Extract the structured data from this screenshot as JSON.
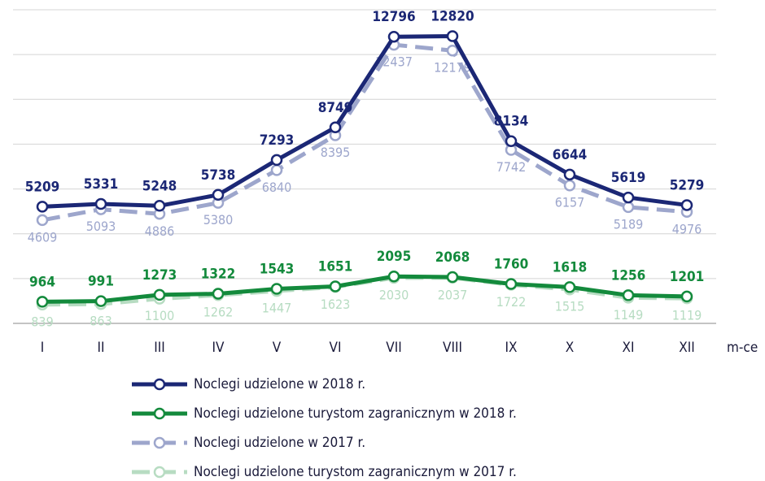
{
  "chart_data": {
    "type": "line",
    "categories": [
      "I",
      "II",
      "III",
      "IV",
      "V",
      "VI",
      "VII",
      "VIII",
      "IX",
      "X",
      "XI",
      "XII"
    ],
    "x_label": "m-ce",
    "ylim": [
      0,
      14000
    ],
    "yticks": [
      0,
      2000,
      4000,
      6000,
      8000,
      10000,
      12000,
      14000
    ],
    "grid": true,
    "legend": "bottom",
    "series": [
      {
        "name": "Noclegi udzielone w 2018 r.",
        "color": "#1b2775",
        "dashed": false,
        "label_position": "above",
        "values": [
          5209,
          5331,
          5248,
          5738,
          7293,
          8749,
          12796,
          12820,
          8134,
          6644,
          5619,
          5279
        ]
      },
      {
        "name": "Noclegi udzielone turystom zagranicznym w 2018 r.",
        "color": "#138a3c",
        "dashed": false,
        "label_position": "above",
        "values": [
          964,
          991,
          1273,
          1322,
          1543,
          1651,
          2095,
          2068,
          1760,
          1618,
          1256,
          1201
        ]
      },
      {
        "name": "Noclegi udzielone w 2017 r.",
        "color": "#9da6cc",
        "dashed": true,
        "label_position": "below",
        "values": [
          4609,
          5093,
          4886,
          5380,
          6840,
          8395,
          12437,
          12179,
          7742,
          6157,
          5189,
          4976
        ]
      },
      {
        "name": "Noclegi udzielone turystom zagranicznym w 2017 r.",
        "color": "#b7dcc2",
        "dashed": true,
        "label_position": "below",
        "values": [
          839,
          863,
          1100,
          1262,
          1447,
          1623,
          2030,
          2037,
          1722,
          1515,
          1149,
          1119
        ]
      }
    ]
  }
}
